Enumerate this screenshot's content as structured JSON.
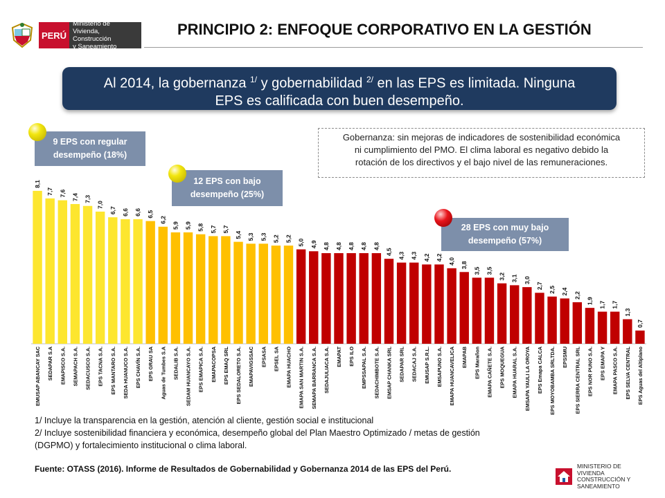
{
  "header": {
    "brand": "PERÚ",
    "ministry_lines": [
      "Ministerio de",
      "Vivienda, Construcción",
      "y Saneamiento"
    ],
    "title": "PRINCIPIO 2: ENFOQUE CORPORATIVO EN LA GESTIÓN"
  },
  "banner": {
    "text_1": "Al 2014, la gobernanza ",
    "sup_1": "1/",
    "text_2": " y gobernabilidad ",
    "sup_2": "2/",
    "text_3": " en las EPS es limitada. Ninguna",
    "line_2": "EPS es calificada con buen desempeño."
  },
  "note": {
    "lines": [
      "Gobernanza: sin mejoras de indicadores de sostenibilidad económica",
      "ni cumplimiento del PMO. El clima laboral es negativo debido la",
      "rotación de los directivos y el bajo nivel de las remuneraciones."
    ]
  },
  "categories": {
    "regular": {
      "line_1": "9 EPS con regular",
      "line_2": "desempeño (18%)"
    },
    "bajo": {
      "line_1": "12 EPS con bajo",
      "line_2": "desempeño (25%)"
    },
    "muy_bajo": {
      "line_1": "28 EPS con muy bajo",
      "line_2": "desempeño (57%)"
    }
  },
  "colors": {
    "regular": "#fde62f",
    "bajo": "#ffc000",
    "muy_bajo": "#c00000",
    "banner": "#1f3a5f",
    "category_label": "#7d8faa"
  },
  "chart_data": {
    "type": "bar",
    "categories": [
      "EMUSAP ABANCAY SAC",
      "SEDAPAR S.A",
      "EMAPISCO S.A.",
      "SEMAPACH S.A.",
      "SEDACUSCO S.A.",
      "EPS TACNA S.A.",
      "EPS MANTARO S.A.",
      "SEDA HUANUCO S.A.",
      "EPS CHAVÍN S.A.",
      "EPS GRAU SA",
      "Aguas de Tumbes S.A",
      "SEDALIB S.A.",
      "SEDAM HUANCAYO S.A.",
      "EPS EMAPICA S.A.",
      "EMAPACOPSA",
      "EPS EMAQ SRL",
      "EPS SEDALORETO S.A.",
      "EMAPAVIGSSAC",
      "EPSASA",
      "EPSEL SA",
      "EMAPA HUACHO",
      "EMAPA SAN MARTIN S.A.",
      "SEMAPA BARRANCA S.A.",
      "SEDAJULIACA S.A.",
      "EMAPAT",
      "EPS ILO",
      "EMPSSAPAL S.A.",
      "SEDACHIMBOTE S.A.",
      "EMSAP CHANKA SRL",
      "SEDAPAR SRL",
      "SEDACAJ S.A.",
      "EMUSAP S.R.L.",
      "EMSAPUNO S.A.",
      "EMAPA HUANCAVELICA",
      "EMAPAB",
      "EPS Marañon",
      "EMAPA CAÑETE S.A.",
      "EPS MOQUEGUA",
      "EMAPA HUARAL S.A.",
      "EMSAPA YAULI LA OROYA",
      "EPS Emapa CALCA",
      "EPS MOYOBAMBA SRLTDA.",
      "EPSSMU",
      "EPS SIERRA CENTRAL SRL",
      "EPS NOR PUNO S.A.",
      "EPS EMAPA Y",
      "EMAPA PASCO S.A.",
      "EPS SELVA CENTRAL",
      "EPS Aguas del Altiplano"
    ],
    "values": [
      8.1,
      7.7,
      7.6,
      7.4,
      7.3,
      7.0,
      6.7,
      6.6,
      6.6,
      6.5,
      6.2,
      5.9,
      5.9,
      5.8,
      5.7,
      5.7,
      5.4,
      5.3,
      5.3,
      5.2,
      5.2,
      5.0,
      4.9,
      4.8,
      4.8,
      4.8,
      4.8,
      4.8,
      4.5,
      4.3,
      4.3,
      4.2,
      4.2,
      4.0,
      3.8,
      3.5,
      3.5,
      3.2,
      3.1,
      3.0,
      2.7,
      2.5,
      2.4,
      2.2,
      1.9,
      1.7,
      1.7,
      1.3,
      0.7
    ],
    "value_labels": [
      "8,1",
      "7,7",
      "7,6",
      "7,4",
      "7,3",
      "7,0",
      "6,7",
      "6,6",
      "6,6",
      "6,5",
      "6,2",
      "5,9",
      "5,9",
      "5,8",
      "5,7",
      "5,7",
      "5,4",
      "5,3",
      "5,3",
      "5,2",
      "5,2",
      "5,0",
      "4,9",
      "4,8",
      "4,8",
      "4,8",
      "4,8",
      "4,8",
      "4,5",
      "4,3",
      "4,3",
      "4,2",
      "4,2",
      "4,0",
      "3,8",
      "3,5",
      "3,5",
      "3,2",
      "3,1",
      "3,0",
      "2,7",
      "2,5",
      "2,4",
      "2,2",
      "1,9",
      "1,7",
      "1,7",
      "1,3",
      "0,7"
    ],
    "groups": [
      "regular",
      "regular",
      "regular",
      "regular",
      "regular",
      "regular",
      "regular",
      "regular",
      "regular",
      "bajo",
      "bajo",
      "bajo",
      "bajo",
      "bajo",
      "bajo",
      "bajo",
      "bajo",
      "bajo",
      "bajo",
      "bajo",
      "bajo",
      "muy_bajo",
      "muy_bajo",
      "muy_bajo",
      "muy_bajo",
      "muy_bajo",
      "muy_bajo",
      "muy_bajo",
      "muy_bajo",
      "muy_bajo",
      "muy_bajo",
      "muy_bajo",
      "muy_bajo",
      "muy_bajo",
      "muy_bajo",
      "muy_bajo",
      "muy_bajo",
      "muy_bajo",
      "muy_bajo",
      "muy_bajo",
      "muy_bajo",
      "muy_bajo",
      "muy_bajo",
      "muy_bajo",
      "muy_bajo",
      "muy_bajo",
      "muy_bajo",
      "muy_bajo",
      "muy_bajo"
    ],
    "ylim": [
      0,
      8.5
    ],
    "grid": false
  },
  "footnotes": {
    "line_1": "1/ Incluye la transparencia en la gestión, atención al cliente, gestión social e institucional",
    "line_2": "2/ Incluye sostenibilidad financiera y económica, desempeño global del Plan Maestro Optimizado / metas de gestión",
    "line_3": "(DGPMO) y fortalecimiento institucional o clima laboral."
  },
  "source": "Fuente: OTASS (2016). Informe de Resultados de Gobernabilidad y Gobernanza 2014 de las EPS del Perú.",
  "footer_logo": {
    "lines": [
      "MINISTERIO DE",
      "VIVIENDA",
      "CONSTRUCCIÓN Y",
      "SANEAMIENTO"
    ]
  }
}
